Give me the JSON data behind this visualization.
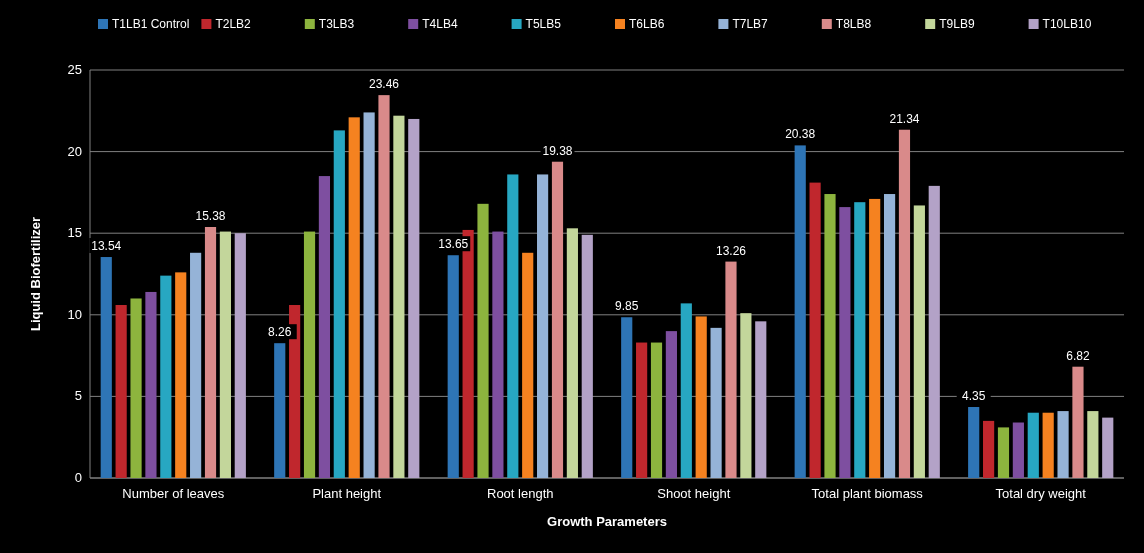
{
  "chart_data": {
    "type": "bar",
    "xlabel": "Growth Parameters",
    "ylabel": "Liquid Biofertilizer",
    "categories": [
      "Number of leaves",
      "Plant height",
      "Root length",
      "Shoot height",
      "Total plant biomass",
      "Total dry weight"
    ],
    "series": [
      {
        "name": "T1LB1 Control",
        "color": "#2e75b6",
        "values": [
          13.54,
          8.26,
          13.65,
          9.85,
          20.38,
          4.35
        ],
        "value_labels": [
          "13.54",
          "8.26",
          "13.65",
          "9.85",
          "20.38",
          "4.35"
        ]
      },
      {
        "name": "T2LB2",
        "color": "#c0272d",
        "values": [
          10.6,
          10.6,
          15.2,
          8.3,
          18.1,
          3.5
        ]
      },
      {
        "name": "T3LB3",
        "color": "#8db43e",
        "values": [
          11.0,
          15.1,
          16.8,
          8.3,
          17.4,
          3.1
        ]
      },
      {
        "name": "T4LB4",
        "color": "#7e4fa0",
        "values": [
          11.4,
          18.5,
          15.1,
          9.0,
          16.6,
          3.4
        ]
      },
      {
        "name": "T5LB5",
        "color": "#27a7c2",
        "values": [
          12.4,
          21.3,
          18.6,
          10.7,
          16.9,
          4.0
        ]
      },
      {
        "name": "T6LB6",
        "color": "#f58220",
        "values": [
          12.6,
          22.1,
          13.8,
          9.9,
          17.1,
          4.0
        ]
      },
      {
        "name": "T7LB7",
        "color": "#95b3d7",
        "values": [
          13.8,
          22.4,
          18.6,
          9.2,
          17.4,
          4.1
        ]
      },
      {
        "name": "T8LB8",
        "color": "#d98a8a",
        "values": [
          15.38,
          23.46,
          19.38,
          13.26,
          21.34,
          6.82
        ],
        "value_labels": [
          "15.38",
          "23.46",
          "19.38",
          "13.26",
          "21.34",
          "6.82"
        ]
      },
      {
        "name": "T9LB9",
        "color": "#c3d69b",
        "values": [
          15.1,
          22.2,
          15.3,
          10.1,
          16.7,
          4.1
        ]
      },
      {
        "name": "T10LB10",
        "color": "#b3a2c7",
        "values": [
          15.0,
          22.0,
          14.9,
          9.6,
          17.9,
          3.7
        ]
      }
    ],
    "ylim": [
      0,
      25
    ],
    "yticks": [
      0,
      5,
      10,
      15,
      20,
      25
    ],
    "grid": "y",
    "legend": "top"
  }
}
